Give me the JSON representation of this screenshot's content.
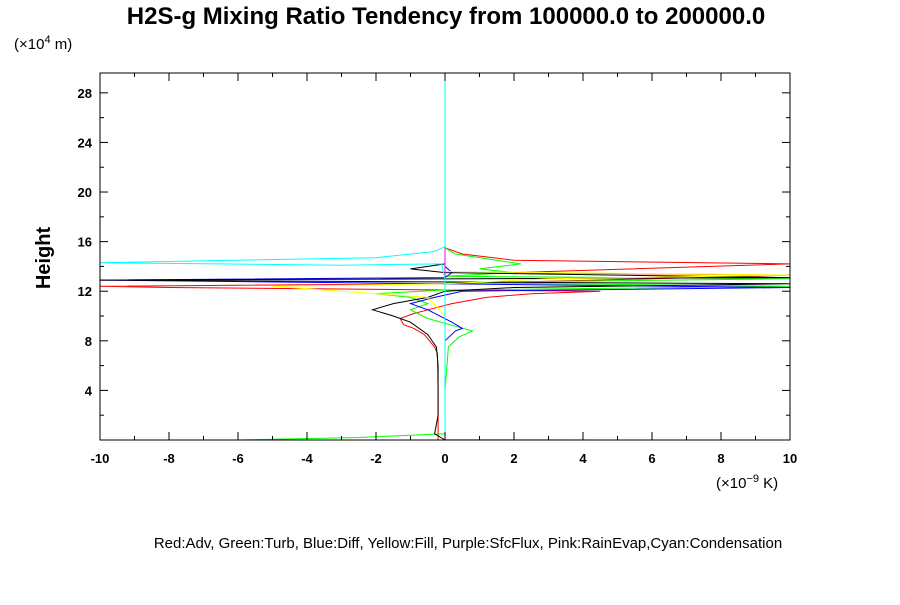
{
  "chart_data": {
    "type": "line",
    "title": "H2S-g Mixing Ratio Tendency from 100000.0 to 200000.0",
    "ylabel": "Height",
    "y_unit_prefix": "(×10",
    "y_unit_exp": "4",
    "y_unit_suffix": " m)",
    "x_unit_prefix": "(×10",
    "x_unit_exp": "−9",
    "x_unit_suffix": " K)",
    "xlim": [
      -10,
      10
    ],
    "ylim": [
      0,
      29.6
    ],
    "x_ticks": [
      -10,
      -8,
      -6,
      -4,
      -2,
      0,
      2,
      4,
      6,
      8,
      10
    ],
    "y_ticks": [
      4,
      8,
      12,
      16,
      20,
      24,
      28
    ],
    "grid": false,
    "legend_text": "Red:Adv, Green:Turb, Blue:Diff, Yellow:Fill, Purple:SfcFlux, Pink:RainEvap,Cyan:Condensation",
    "series": [
      {
        "color": "#ff0000",
        "points": [
          [
            -0.2,
            0
          ],
          [
            -0.2,
            1
          ],
          [
            -0.2,
            4
          ],
          [
            -0.22,
            7
          ],
          [
            -0.3,
            7.5
          ],
          [
            -0.6,
            8.5
          ],
          [
            -0.9,
            9
          ],
          [
            -1.2,
            9.3
          ],
          [
            -1.3,
            9.8
          ],
          [
            -0.9,
            10.2
          ],
          [
            -0.5,
            10.5
          ],
          [
            0.2,
            11
          ],
          [
            1.2,
            11.5
          ],
          [
            2.5,
            11.8
          ],
          [
            4.5,
            12
          ],
          [
            0,
            12.1
          ],
          [
            -8,
            12.3
          ],
          [
            -10,
            12.4
          ],
          [
            0,
            12.6
          ],
          [
            3,
            12.8
          ],
          [
            6,
            13
          ],
          [
            10,
            13.3
          ],
          [
            2,
            13.5
          ],
          [
            10,
            14.2
          ],
          [
            2,
            14.5
          ],
          [
            0.5,
            15
          ],
          [
            0,
            15.5
          ],
          [
            0,
            29.6
          ]
        ]
      },
      {
        "color": "#00ff00",
        "points": [
          [
            -6,
            0
          ],
          [
            -2.5,
            0.2
          ],
          [
            0,
            0.5
          ],
          [
            0,
            0.8
          ],
          [
            0,
            4
          ],
          [
            0.1,
            7.5
          ],
          [
            0.4,
            8.3
          ],
          [
            0.8,
            8.8
          ],
          [
            0.4,
            9.1
          ],
          [
            -0.5,
            9.8
          ],
          [
            -1,
            10.5
          ],
          [
            -0.5,
            11
          ],
          [
            -1,
            11.5
          ],
          [
            -2,
            11.8
          ],
          [
            0,
            12.1
          ],
          [
            10,
            12.4
          ],
          [
            0,
            12.7
          ],
          [
            10,
            13
          ],
          [
            0,
            13.2
          ],
          [
            2,
            13.5
          ],
          [
            1,
            13.8
          ],
          [
            2.2,
            14.2
          ],
          [
            1.5,
            14.5
          ],
          [
            0.3,
            15
          ],
          [
            0,
            15.5
          ],
          [
            0,
            29.6
          ]
        ]
      },
      {
        "color": "#0000ff",
        "points": [
          [
            0,
            0
          ],
          [
            0,
            4
          ],
          [
            0,
            8
          ],
          [
            0.3,
            8.8
          ],
          [
            0.5,
            9
          ],
          [
            0.2,
            9.5
          ],
          [
            -0.5,
            10.5
          ],
          [
            -1,
            11
          ],
          [
            -0.3,
            11.5
          ],
          [
            0.5,
            12
          ],
          [
            10,
            12.3
          ],
          [
            0,
            12.6
          ],
          [
            -10,
            12.9
          ],
          [
            0,
            13.1
          ],
          [
            0.2,
            13.5
          ],
          [
            0,
            14
          ],
          [
            0,
            29.6
          ]
        ]
      },
      {
        "color": "#000000",
        "points": [
          [
            0,
            0
          ],
          [
            -0.3,
            0.5
          ],
          [
            -0.2,
            2
          ],
          [
            -0.2,
            6
          ],
          [
            -0.25,
            7.5
          ],
          [
            -0.5,
            8.5
          ],
          [
            -1,
            9.5
          ],
          [
            -1.5,
            10
          ],
          [
            -2.1,
            10.5
          ],
          [
            -1.5,
            11
          ],
          [
            -0.5,
            11.5
          ],
          [
            0,
            12
          ],
          [
            2,
            12.3
          ],
          [
            10,
            12.6
          ],
          [
            -10,
            12.9
          ],
          [
            10,
            13.1
          ],
          [
            0,
            13.5
          ],
          [
            -1,
            13.8
          ],
          [
            0,
            14.2
          ],
          [
            0,
            29.6
          ]
        ]
      },
      {
        "color": "#ffff00",
        "points": [
          [
            0,
            0
          ],
          [
            0,
            10
          ],
          [
            -0.5,
            11.5
          ],
          [
            -5,
            12.4
          ],
          [
            0,
            12.6
          ],
          [
            3,
            13
          ],
          [
            10,
            13.3
          ],
          [
            0,
            13.6
          ],
          [
            0,
            29.6
          ]
        ]
      },
      {
        "color": "#ff00ff",
        "points": [
          [
            -8.2,
            0
          ],
          [
            0,
            0
          ],
          [
            4.5,
            0
          ],
          [
            0,
            0.02
          ],
          [
            0,
            29.6
          ]
        ]
      },
      {
        "color": "#ff99cc",
        "points": [
          [
            -10,
            0
          ],
          [
            -4,
            0
          ],
          [
            0,
            0
          ]
        ]
      },
      {
        "color": "#00ffff",
        "points": [
          [
            0,
            0
          ],
          [
            0,
            13
          ],
          [
            -0.1,
            14.2
          ],
          [
            -3,
            14.1
          ],
          [
            -10,
            14.3
          ],
          [
            -2,
            14.7
          ],
          [
            -0.3,
            15.2
          ],
          [
            0,
            15.6
          ],
          [
            0,
            29.6
          ]
        ]
      }
    ]
  }
}
